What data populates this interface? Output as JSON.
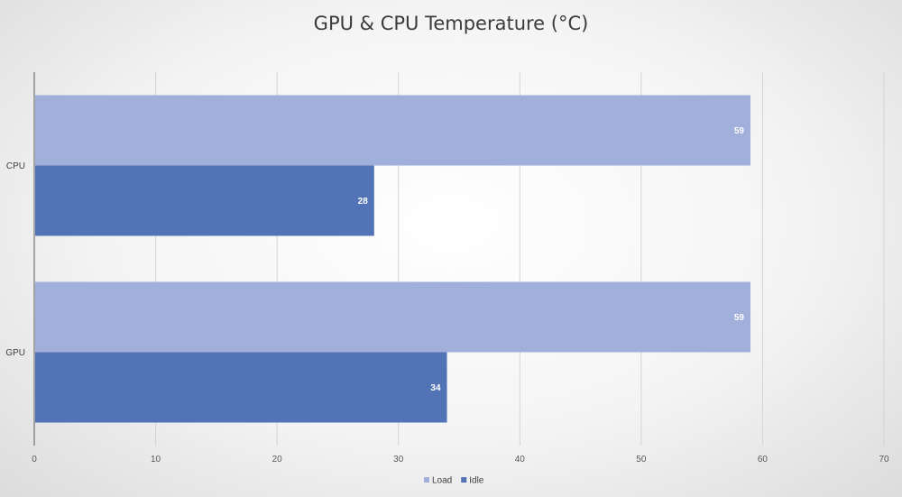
{
  "chart_data": {
    "type": "bar",
    "orientation": "horizontal",
    "title": "GPU & CPU Temperature (°C)",
    "xlabel": "",
    "ylabel": "",
    "categories": [
      "CPU",
      "GPU"
    ],
    "series": [
      {
        "name": "Load",
        "values": [
          59,
          59
        ],
        "color": "#a1afdb"
      },
      {
        "name": "Idle",
        "values": [
          28,
          34
        ],
        "color": "#5274b6"
      }
    ],
    "xlim": [
      0,
      70
    ],
    "xticks": [
      0,
      10,
      20,
      30,
      40,
      50,
      60,
      70
    ],
    "grid": true,
    "legend": "bottom"
  }
}
